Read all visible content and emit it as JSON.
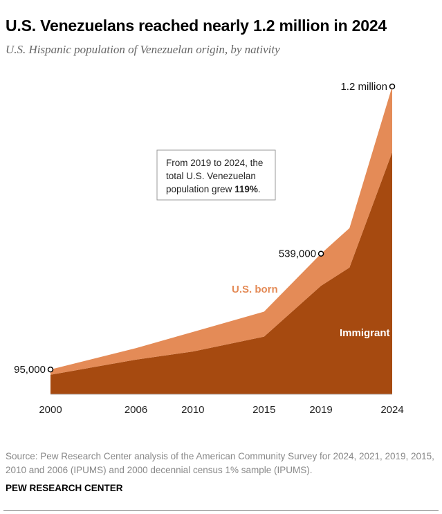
{
  "chart_data": {
    "type": "area",
    "stacked": true,
    "title": "U.S. Venezuelans reached nearly 1.2 million in 2024",
    "subtitle": "U.S. Hispanic population of Venezuelan origin, by nativity",
    "x": [
      2000,
      2006,
      2010,
      2015,
      2019,
      2021,
      2024
    ],
    "x_tick_labels": [
      "2000",
      "2006",
      "2010",
      "2015",
      "2019",
      "",
      "2024"
    ],
    "series": [
      {
        "name": "Immigrant",
        "color": "#a64a10",
        "values": [
          75000,
          133000,
          164000,
          221000,
          416000,
          486000,
          928000
        ]
      },
      {
        "name": "U.S. born",
        "color": "#e48b57",
        "values": [
          20000,
          44000,
          75000,
          96000,
          123000,
          151000,
          252000
        ]
      }
    ],
    "total_labels": [
      {
        "year": 2000,
        "text": "95,000"
      },
      {
        "year": 2019,
        "text": "539,000"
      },
      {
        "year": 2024,
        "text": "1.2 million"
      }
    ],
    "ylim": [
      0,
      1180000
    ],
    "grid": false,
    "annotation": {
      "line1": "From 2019 to 2024, the",
      "line2": "total U.S. Venezuelan",
      "line3_prefix": "population grew ",
      "line3_bold": "119%",
      "line3_suffix": "."
    }
  },
  "footer": {
    "source": "Source: Pew Research Center analysis of the American Community Survey for 2024, 2021, 2019, 2015, 2010 and 2006 (IPUMS) and 2000 decennial census 1% sample (IPUMS).",
    "brand": "PEW RESEARCH CENTER"
  }
}
